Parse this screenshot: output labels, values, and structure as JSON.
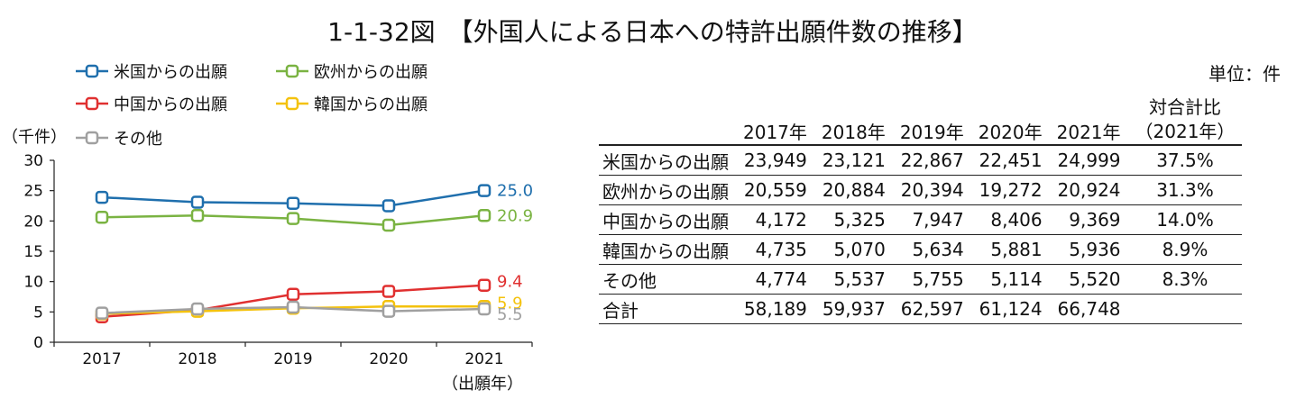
{
  "title": "1-1-32図　【外国人による日本への特許出願件数の推移】",
  "chart_data": {
    "type": "line",
    "ylabel": "（千件）",
    "xlabel": "（出願年）",
    "categories": [
      "2017",
      "2018",
      "2019",
      "2020",
      "2021"
    ],
    "ylim": [
      0,
      30
    ],
    "yticks": [
      0,
      5,
      10,
      15,
      20,
      25,
      30
    ],
    "legend_position": "top-left",
    "series": [
      {
        "name": "米国からの出願",
        "color": "#1f6fad",
        "values": [
          23.9,
          23.1,
          22.9,
          22.5,
          25.0
        ],
        "end_label": "25.0"
      },
      {
        "name": "欧州からの出願",
        "color": "#7ab342",
        "values": [
          20.6,
          20.9,
          20.4,
          19.3,
          20.9
        ],
        "end_label": "20.9"
      },
      {
        "name": "中国からの出願",
        "color": "#e03030",
        "values": [
          4.2,
          5.3,
          7.9,
          8.4,
          9.4
        ],
        "end_label": "9.4"
      },
      {
        "name": "韓国からの出願",
        "color": "#f4c20d",
        "values": [
          4.7,
          5.1,
          5.6,
          5.9,
          5.9
        ],
        "end_label": "5.9"
      },
      {
        "name": "その他",
        "color": "#a0a0a0",
        "values": [
          4.8,
          5.5,
          5.8,
          5.1,
          5.5
        ],
        "end_label": "5.5"
      }
    ]
  },
  "table": {
    "unit": "単位：件",
    "headers": [
      "",
      "2017年",
      "2018年",
      "2019年",
      "2020年",
      "2021年"
    ],
    "ratio_header_1": "対合計比",
    "ratio_header_2": "（2021年）",
    "rows": [
      {
        "label": "米国からの出願",
        "values": [
          "23,949",
          "23,121",
          "22,867",
          "22,451",
          "24,999"
        ],
        "ratio": "37.5%"
      },
      {
        "label": "欧州からの出願",
        "values": [
          "20,559",
          "20,884",
          "20,394",
          "19,272",
          "20,924"
        ],
        "ratio": "31.3%"
      },
      {
        "label": "中国からの出願",
        "values": [
          "4,172",
          "5,325",
          "7,947",
          "8,406",
          "9,369"
        ],
        "ratio": "14.0%"
      },
      {
        "label": "韓国からの出願",
        "values": [
          "4,735",
          "5,070",
          "5,634",
          "5,881",
          "5,936"
        ],
        "ratio": "8.9%"
      },
      {
        "label": "その他",
        "values": [
          "4,774",
          "5,537",
          "5,755",
          "5,114",
          "5,520"
        ],
        "ratio": "8.3%"
      },
      {
        "label": "合計",
        "values": [
          "58,189",
          "59,937",
          "62,597",
          "61,124",
          "66,748"
        ],
        "ratio": ""
      }
    ]
  }
}
